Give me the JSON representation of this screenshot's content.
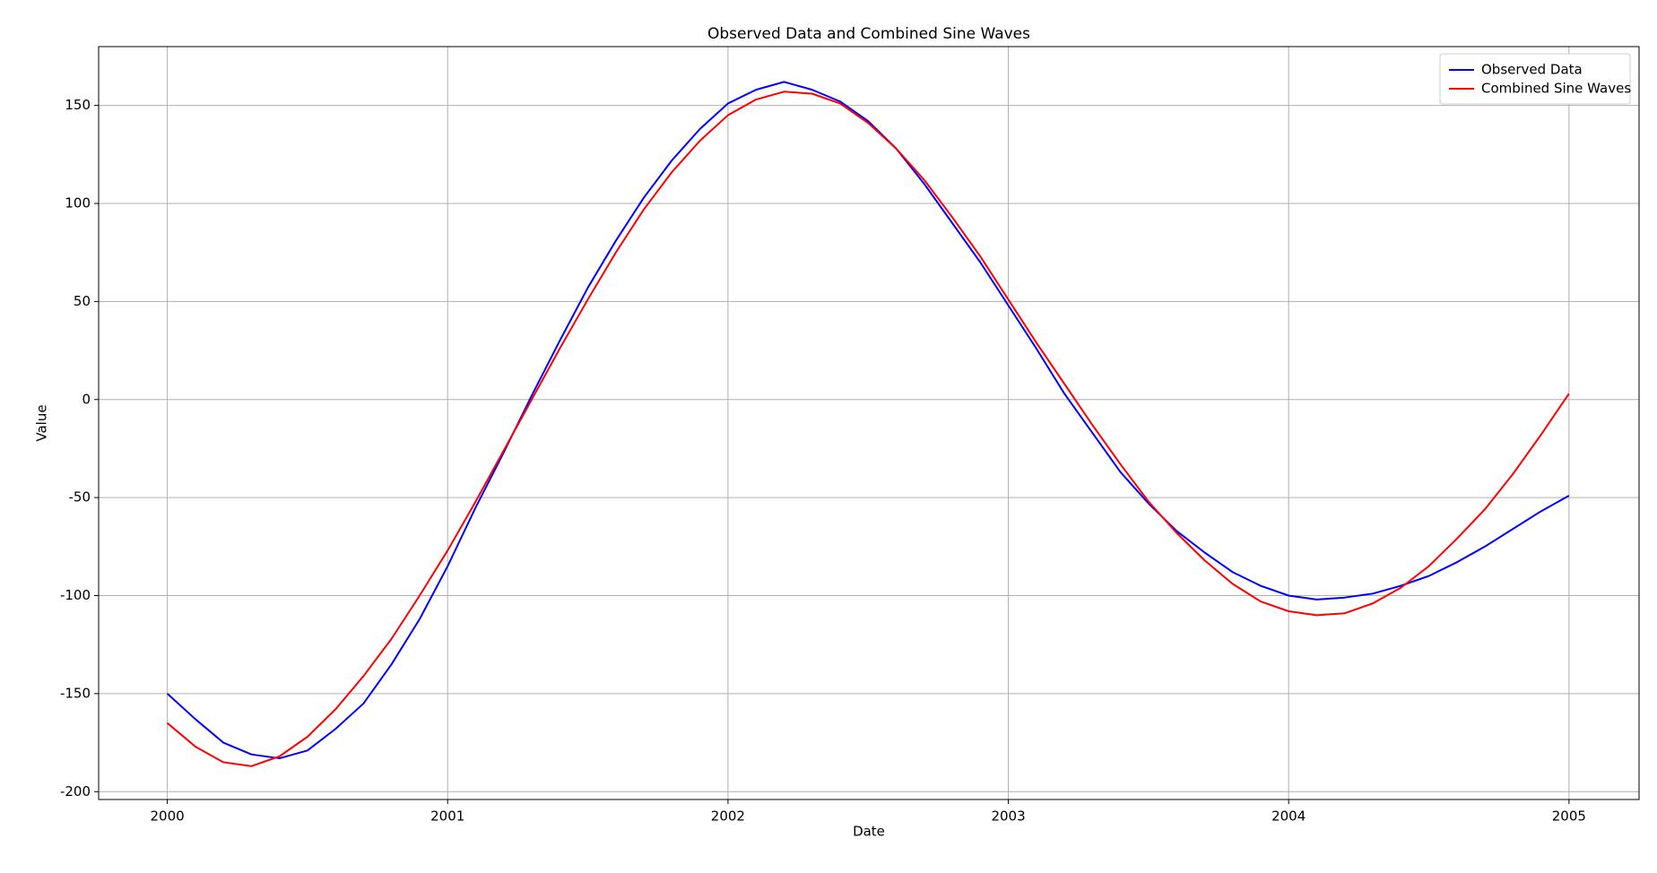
{
  "chart_data": {
    "type": "line",
    "title": "Observed Data and Combined Sine Waves",
    "x_label": "Date",
    "y_label": "Value",
    "x": [
      2000.0,
      2000.1,
      2000.2,
      2000.3,
      2000.4,
      2000.5,
      2000.6,
      2000.7,
      2000.8,
      2000.9,
      2001.0,
      2001.1,
      2001.2,
      2001.3,
      2001.4,
      2001.5,
      2001.6,
      2001.7,
      2001.8,
      2001.9,
      2002.0,
      2002.1,
      2002.2,
      2002.3,
      2002.4,
      2002.5,
      2002.6,
      2002.7,
      2002.8,
      2002.9,
      2003.0,
      2003.1,
      2003.2,
      2003.3,
      2003.4,
      2003.5,
      2003.6,
      2003.7,
      2003.8,
      2003.9,
      2004.0,
      2004.1,
      2004.2,
      2004.3,
      2004.4,
      2004.5,
      2004.6,
      2004.7,
      2004.8,
      2004.9,
      2005.0
    ],
    "series": [
      {
        "name": "Observed Data",
        "color": "#0000ff",
        "values": [
          -150,
          -163,
          -175,
          -181,
          -183,
          -179,
          -168,
          -155,
          -135,
          -112,
          -85,
          -55,
          -27,
          2,
          30,
          57,
          81,
          103,
          122,
          138,
          151,
          158,
          162,
          158,
          152,
          142,
          128,
          110,
          90,
          70,
          48,
          26,
          3,
          -17,
          -37,
          -53,
          -67,
          -78,
          -88,
          -95,
          -100,
          -102,
          -101,
          -99,
          -95,
          -90,
          -83,
          -75,
          -66,
          -57,
          -49
        ]
      },
      {
        "name": "Combined Sine Waves",
        "color": "#ff0000",
        "values": [
          -165,
          -177,
          -185,
          -187,
          -182,
          -172,
          -158,
          -141,
          -122,
          -100,
          -77,
          -52,
          -26,
          0,
          26,
          51,
          75,
          97,
          116,
          132,
          145,
          153,
          157,
          156,
          151,
          141,
          128,
          112,
          93,
          73,
          51,
          29,
          8,
          -13,
          -33,
          -52,
          -68,
          -82,
          -94,
          -103,
          -108,
          -110,
          -109,
          -104,
          -96,
          -85,
          -71,
          -56,
          -38,
          -18,
          3
        ]
      }
    ],
    "xlim": [
      1999.755,
      2005.25
    ],
    "xticks": [
      2000,
      2001,
      2002,
      2003,
      2004,
      2005
    ],
    "ylim": [
      -204,
      180
    ],
    "yticks": [
      -200,
      -150,
      -100,
      -50,
      0,
      50,
      100,
      150
    ],
    "grid": true,
    "legend": "upper right"
  }
}
